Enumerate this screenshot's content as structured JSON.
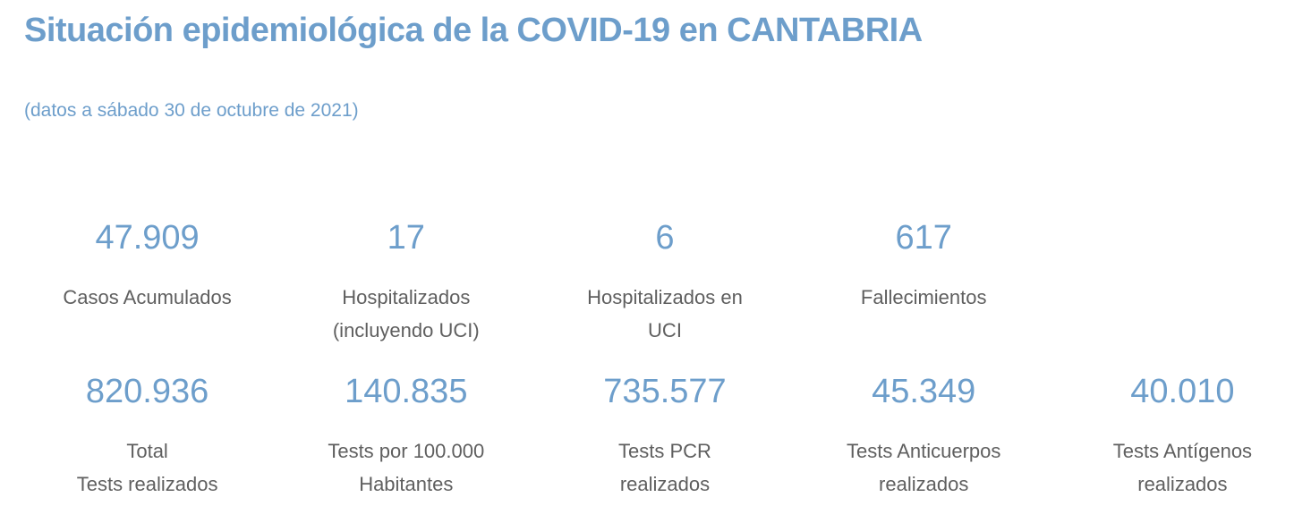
{
  "theme": {
    "accent-blue": "#6d9ecb",
    "label-gray": "#5f5f5f",
    "background": "#ffffff"
  },
  "header": {
    "title": "Situación epidemiológica de la COVID-19 en CANTABRIA",
    "subtitle": "(datos a sábado 30 de octubre de 2021)"
  },
  "stats": {
    "row1": [
      {
        "value": "47.909",
        "label": "Casos Acumulados"
      },
      {
        "value": "17",
        "label": "Hospitalizados\n(incluyendo UCI)"
      },
      {
        "value": "6",
        "label": "Hospitalizados en\nUCI"
      },
      {
        "value": "617",
        "label": "Fallecimientos"
      }
    ],
    "row2": [
      {
        "value": "820.936",
        "label": "Total\nTests realizados"
      },
      {
        "value": "140.835",
        "label": "Tests por 100.000\nHabitantes"
      },
      {
        "value": "735.577",
        "label": "Tests PCR\nrealizados"
      },
      {
        "value": "45.349",
        "label": "Tests Anticuerpos\nrealizados"
      },
      {
        "value": "40.010",
        "label": "Tests Antígenos\nrealizados"
      }
    ]
  },
  "chart_data": {
    "type": "table",
    "title": "Situación epidemiológica de la COVID-19 en CANTABRIA",
    "subtitle": "(datos a sábado 30 de octubre de 2021)",
    "categories": [
      "Casos Acumulados",
      "Hospitalizados (incluyendo UCI)",
      "Hospitalizados en UCI",
      "Fallecimientos",
      "Total Tests realizados",
      "Tests por 100.000 Habitantes",
      "Tests PCR realizados",
      "Tests Anticuerpos realizados",
      "Tests Antígenos realizados"
    ],
    "values": [
      47909,
      17,
      6,
      617,
      820936,
      140835,
      735577,
      45349,
      40010
    ],
    "layout": "two KPI rows: 4 cards top, 5 cards bottom; numbers blue, labels gray; no axes or grid"
  }
}
